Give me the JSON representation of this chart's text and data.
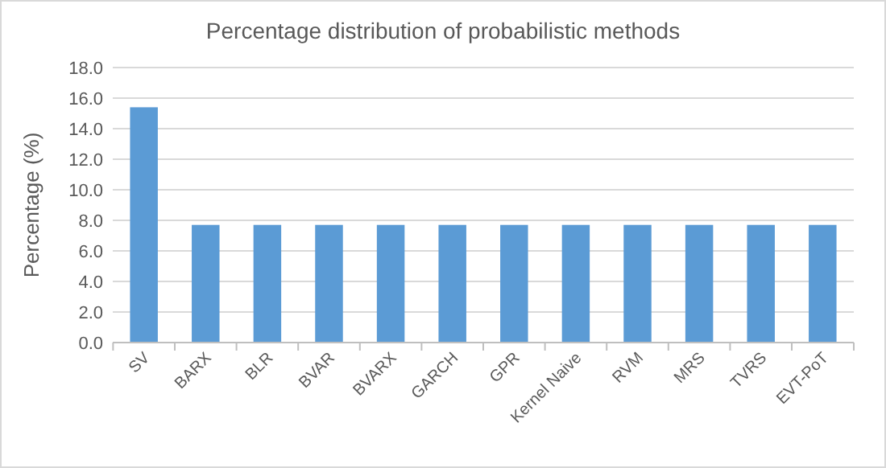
{
  "chart_data": {
    "type": "bar",
    "title": "Percentage distribution of probabilistic methods",
    "ylabel": "Percentage (%)",
    "categories": [
      "SV",
      "BARX",
      "BLR",
      "BVAR",
      "BVARX",
      "GARCH",
      "GPR",
      "Kernel Naive",
      "RVM",
      "MRS",
      "TVRS",
      "EVT-PoT"
    ],
    "values": [
      15.4,
      7.7,
      7.7,
      7.7,
      7.7,
      7.7,
      7.7,
      7.7,
      7.7,
      7.7,
      7.7,
      7.7
    ],
    "color": "#5b9bd5",
    "ylim": [
      0,
      18
    ],
    "yticks": [
      {
        "value": 0,
        "label": "0.0"
      },
      {
        "value": 2,
        "label": "2.0"
      },
      {
        "value": 4,
        "label": "4.0"
      },
      {
        "value": 6,
        "label": "6.0"
      },
      {
        "value": 8,
        "label": "8.0"
      },
      {
        "value": 10,
        "label": "10.0"
      },
      {
        "value": 12,
        "label": "12.0"
      },
      {
        "value": 14,
        "label": "14.0"
      },
      {
        "value": 16,
        "label": "16.0"
      },
      {
        "value": 18,
        "label": "18.0"
      }
    ],
    "grid": "y"
  }
}
